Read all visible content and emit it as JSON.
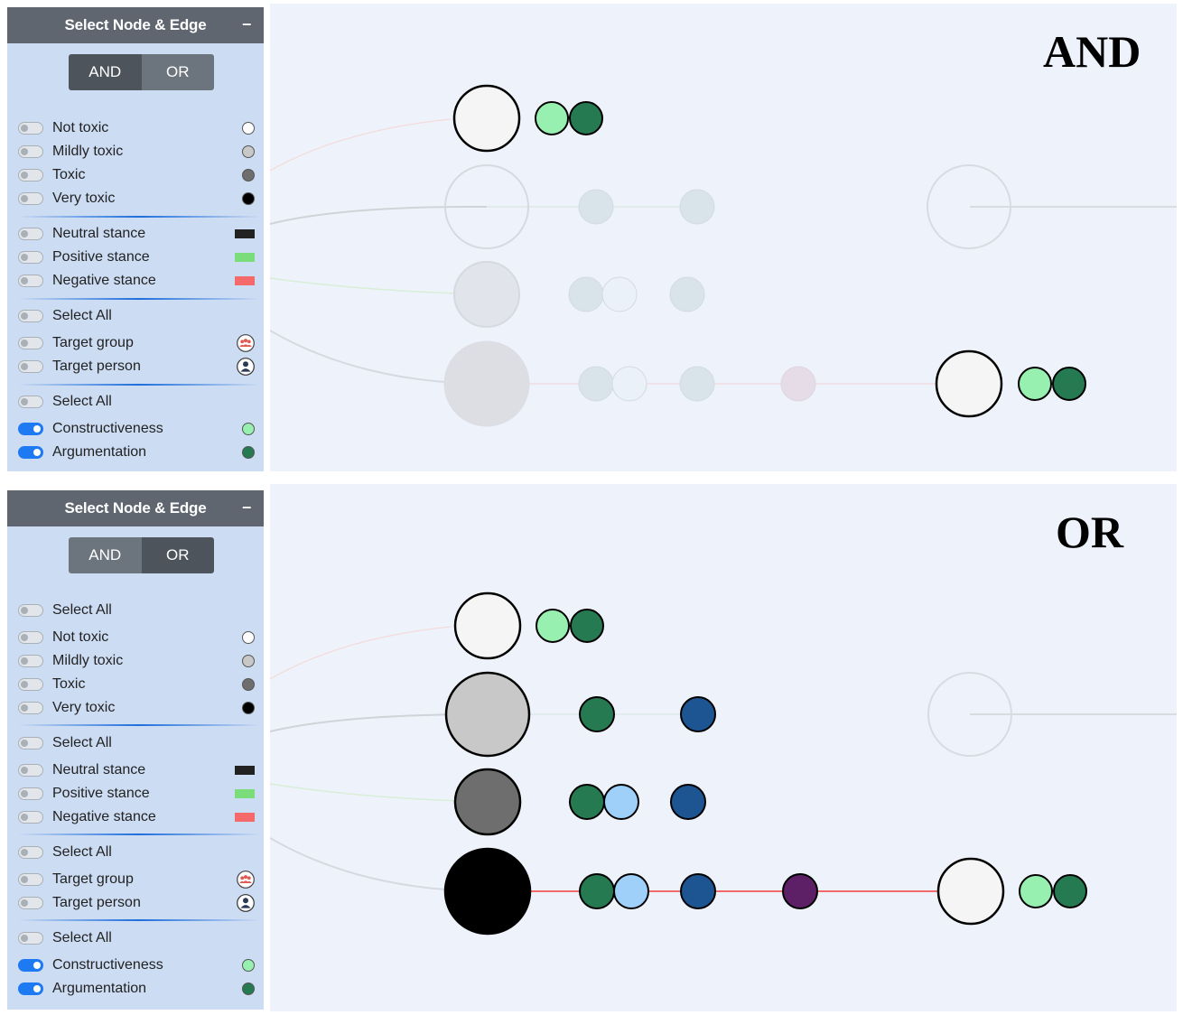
{
  "panels": [
    {
      "title": "Select Node & Edge",
      "minimize_label": "–",
      "mode_buttons": [
        "AND",
        "OR"
      ],
      "active_mode": "AND",
      "mode_label": "AND",
      "sections": [
        {
          "rows": [
            {
              "label": "Not toxic",
              "marker": "dot",
              "color": "#ffffff",
              "on": false
            },
            {
              "label": "Mildly toxic",
              "marker": "dot",
              "color": "#c8c8c8",
              "on": false
            },
            {
              "label": "Toxic",
              "marker": "dot",
              "color": "#6e6e6e",
              "on": false
            },
            {
              "label": "Very toxic",
              "marker": "dot",
              "color": "#000000",
              "on": false
            }
          ]
        },
        {
          "rows": [
            {
              "label": "Neutral stance",
              "marker": "rect",
              "color": "#222222",
              "on": false
            },
            {
              "label": "Positive stance",
              "marker": "rect",
              "color": "#7bdc7b",
              "on": false
            },
            {
              "label": "Negative stance",
              "marker": "rect",
              "color": "#f46a6a",
              "on": false
            }
          ]
        },
        {
          "rows": [
            {
              "label": "Select All",
              "marker": "none",
              "on": false
            },
            {
              "label": "Target group",
              "marker": "group-icon",
              "on": false
            },
            {
              "label": "Target person",
              "marker": "person-icon",
              "on": false
            }
          ]
        },
        {
          "rows": [
            {
              "label": "Select All",
              "marker": "none",
              "on": false
            },
            {
              "label": "Constructiveness",
              "marker": "dot",
              "color": "#98f0b0",
              "on": true
            },
            {
              "label": "Argumentation",
              "marker": "dot",
              "color": "#257a52",
              "on": true
            }
          ]
        }
      ]
    },
    {
      "title": "Select Node & Edge",
      "minimize_label": "–",
      "mode_buttons": [
        "AND",
        "OR"
      ],
      "active_mode": "OR",
      "mode_label": "OR",
      "sections": [
        {
          "rows": [
            {
              "label": "Select All",
              "marker": "none",
              "on": false
            },
            {
              "label": "Not toxic",
              "marker": "dot",
              "color": "#ffffff",
              "on": false
            },
            {
              "label": "Mildly toxic",
              "marker": "dot",
              "color": "#c8c8c8",
              "on": false
            },
            {
              "label": "Toxic",
              "marker": "dot",
              "color": "#6e6e6e",
              "on": false
            },
            {
              "label": "Very toxic",
              "marker": "dot",
              "color": "#000000",
              "on": false
            }
          ]
        },
        {
          "rows": [
            {
              "label": "Select All",
              "marker": "none",
              "on": false
            },
            {
              "label": "Neutral stance",
              "marker": "rect",
              "color": "#222222",
              "on": false
            },
            {
              "label": "Positive stance",
              "marker": "rect",
              "color": "#7bdc7b",
              "on": false
            },
            {
              "label": "Negative stance",
              "marker": "rect",
              "color": "#f46a6a",
              "on": false
            }
          ]
        },
        {
          "rows": [
            {
              "label": "Select All",
              "marker": "none",
              "on": false
            },
            {
              "label": "Target group",
              "marker": "group-icon",
              "on": false
            },
            {
              "label": "Target person",
              "marker": "person-icon",
              "on": false
            }
          ]
        },
        {
          "rows": [
            {
              "label": "Select All",
              "marker": "none",
              "on": false
            },
            {
              "label": "Constructiveness",
              "marker": "dot",
              "color": "#98f0b0",
              "on": true
            },
            {
              "label": "Argumentation",
              "marker": "dot",
              "color": "#257a52",
              "on": true
            }
          ]
        }
      ]
    }
  ],
  "colors": {
    "panel_bg": "#ccdcf3",
    "header_bg": "#5f6670",
    "graph_bg": "#eef2fb",
    "toggle_on": "#1d7af3",
    "not_toxic": "#f5f5f5",
    "mildly_toxic": "#c8c8c8",
    "toxic": "#6e6e6e",
    "very_toxic": "#000000",
    "constructiveness": "#98f0b0",
    "argumentation": "#257a52",
    "light_blue": "#9fd0fa",
    "dark_blue": "#1c5591",
    "purple": "#5d1f65",
    "negative_edge": "#f46a6a"
  }
}
